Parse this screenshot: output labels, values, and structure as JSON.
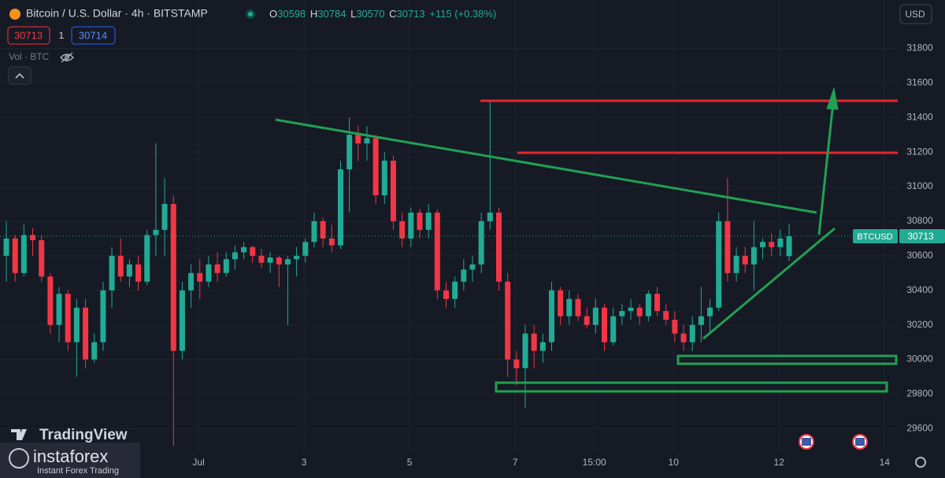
{
  "chart_data": {
    "type": "candlestick",
    "title": "Bitcoin / U.S. Dollar · 4h · BITSTAMP",
    "legend": {
      "labels": [
        "O",
        "H",
        "L",
        "C"
      ],
      "values": [
        30598,
        30784,
        30570,
        30713
      ],
      "change": "+115",
      "change_pct": "(+0.38%)"
    },
    "bid": 30713,
    "spread": 1,
    "ask": 30714,
    "volume_label": "Vol · BTC",
    "currency": "USD",
    "symbol": "BTCUSD",
    "last_price": 30713,
    "brand": "TradingView",
    "watermark": "instaforex",
    "watermark_sub": "Instant Forex Trading",
    "up_color": "#22ab94",
    "down_color": "#f23645",
    "ylim": [
      29460,
      32080
    ],
    "yticks": [
      29600,
      29800,
      30000,
      30200,
      30400,
      30600,
      30800,
      31000,
      31200,
      31400,
      31600,
      31800
    ],
    "xlim": [
      -0.72,
      101.35
    ],
    "xticks": [
      {
        "value": 21.85,
        "label": "Jul"
      },
      {
        "value": 33.85,
        "label": "3"
      },
      {
        "value": 45.85,
        "label": "5"
      },
      {
        "value": 57.85,
        "label": "7"
      },
      {
        "value": 66.85,
        "label": "15:00"
      },
      {
        "value": 75.85,
        "label": "10"
      },
      {
        "value": 87.85,
        "label": "12"
      },
      {
        "value": 99.85,
        "label": "14"
      }
    ],
    "series": [
      {
        "name": "BTCUSD",
        "open": [
          30600,
          30700,
          30500,
          30720,
          30690,
          30480,
          30200,
          30380,
          30100,
          30300,
          30000,
          30100,
          30400,
          30600,
          30480,
          30550,
          30450,
          30720,
          30750,
          30900,
          30050,
          30400,
          30500,
          30450,
          30550,
          30500,
          30580,
          30620,
          30650,
          30600,
          30560,
          30590,
          30550,
          30580,
          30600,
          30680,
          30800,
          30700,
          30660,
          31100,
          31300,
          31250,
          31280,
          30950,
          31150,
          30800,
          30700,
          30850,
          30750,
          30850,
          30400,
          30350,
          30450,
          30520,
          30550,
          30800,
          30850,
          30450,
          30000,
          29950,
          30150,
          30050,
          30100,
          30400,
          30250,
          30350,
          30250,
          30200,
          30300,
          30100,
          30250,
          30280,
          30300,
          30250,
          30380,
          30280,
          30230,
          30150,
          30100,
          30200,
          30250,
          30300,
          30800,
          30500,
          30600,
          30550,
          30650,
          30680,
          30650,
          30598
        ],
        "high": [
          30800,
          30720,
          30780,
          30760,
          30720,
          30500,
          30420,
          30400,
          30350,
          30350,
          30150,
          30450,
          30650,
          30700,
          30580,
          30600,
          30750,
          31250,
          31050,
          30950,
          30450,
          30550,
          30580,
          30600,
          30620,
          30620,
          30660,
          30680,
          30660,
          30640,
          30620,
          30600,
          30600,
          30650,
          30700,
          30850,
          30820,
          30780,
          31150,
          31400,
          31350,
          31350,
          31300,
          31200,
          31180,
          30850,
          30880,
          30870,
          30900,
          30870,
          30450,
          30480,
          30580,
          30600,
          30850,
          31500,
          30880,
          30500,
          30050,
          30200,
          30200,
          30150,
          30450,
          30420,
          30400,
          30380,
          30300,
          30350,
          30320,
          30300,
          30320,
          30350,
          30320,
          30400,
          30420,
          30320,
          30280,
          30200,
          30250,
          30420,
          30350,
          30850,
          31050,
          30650,
          30650,
          30800,
          30700,
          30730,
          30750,
          30784
        ],
        "low": [
          30450,
          30450,
          30480,
          30600,
          30450,
          30150,
          30100,
          30050,
          29900,
          29950,
          29980,
          30050,
          30300,
          30450,
          30420,
          30400,
          30430,
          30600,
          30600,
          29500,
          30000,
          30300,
          30350,
          30420,
          30450,
          30480,
          30520,
          30580,
          30560,
          30530,
          30500,
          30420,
          30200,
          30480,
          30560,
          30650,
          30650,
          30620,
          30640,
          30850,
          31150,
          31150,
          30900,
          30900,
          30750,
          30650,
          30650,
          30700,
          30700,
          30350,
          30300,
          30300,
          30400,
          30450,
          30500,
          30750,
          30400,
          29900,
          29850,
          29720,
          29950,
          29980,
          30050,
          30200,
          30200,
          30220,
          30180,
          30150,
          30050,
          30080,
          30200,
          30230,
          30200,
          30220,
          30250,
          30200,
          30100,
          30050,
          30050,
          30100,
          30150,
          30280,
          30450,
          30450,
          30500,
          30400,
          30580,
          30600,
          30600,
          30570
        ],
        "close": [
          30700,
          30500,
          30720,
          30690,
          30480,
          30200,
          30380,
          30100,
          30300,
          30000,
          30100,
          30400,
          30600,
          30480,
          30550,
          30450,
          30720,
          30750,
          30900,
          30050,
          30400,
          30500,
          30450,
          30550,
          30500,
          30580,
          30620,
          30650,
          30600,
          30560,
          30590,
          30550,
          30580,
          30600,
          30680,
          30800,
          30700,
          30660,
          31100,
          31300,
          31250,
          31280,
          30950,
          31150,
          30800,
          30700,
          30850,
          30750,
          30850,
          30400,
          30350,
          30450,
          30520,
          30550,
          30800,
          30850,
          30450,
          30000,
          29950,
          30150,
          30050,
          30100,
          30400,
          30250,
          30350,
          30250,
          30200,
          30300,
          30100,
          30250,
          30280,
          30300,
          30250,
          30380,
          30280,
          30230,
          30150,
          30100,
          30200,
          30250,
          30300,
          30800,
          30500,
          30600,
          30550,
          30650,
          30680,
          30650,
          30700,
          30713
        ]
      }
    ]
  }
}
